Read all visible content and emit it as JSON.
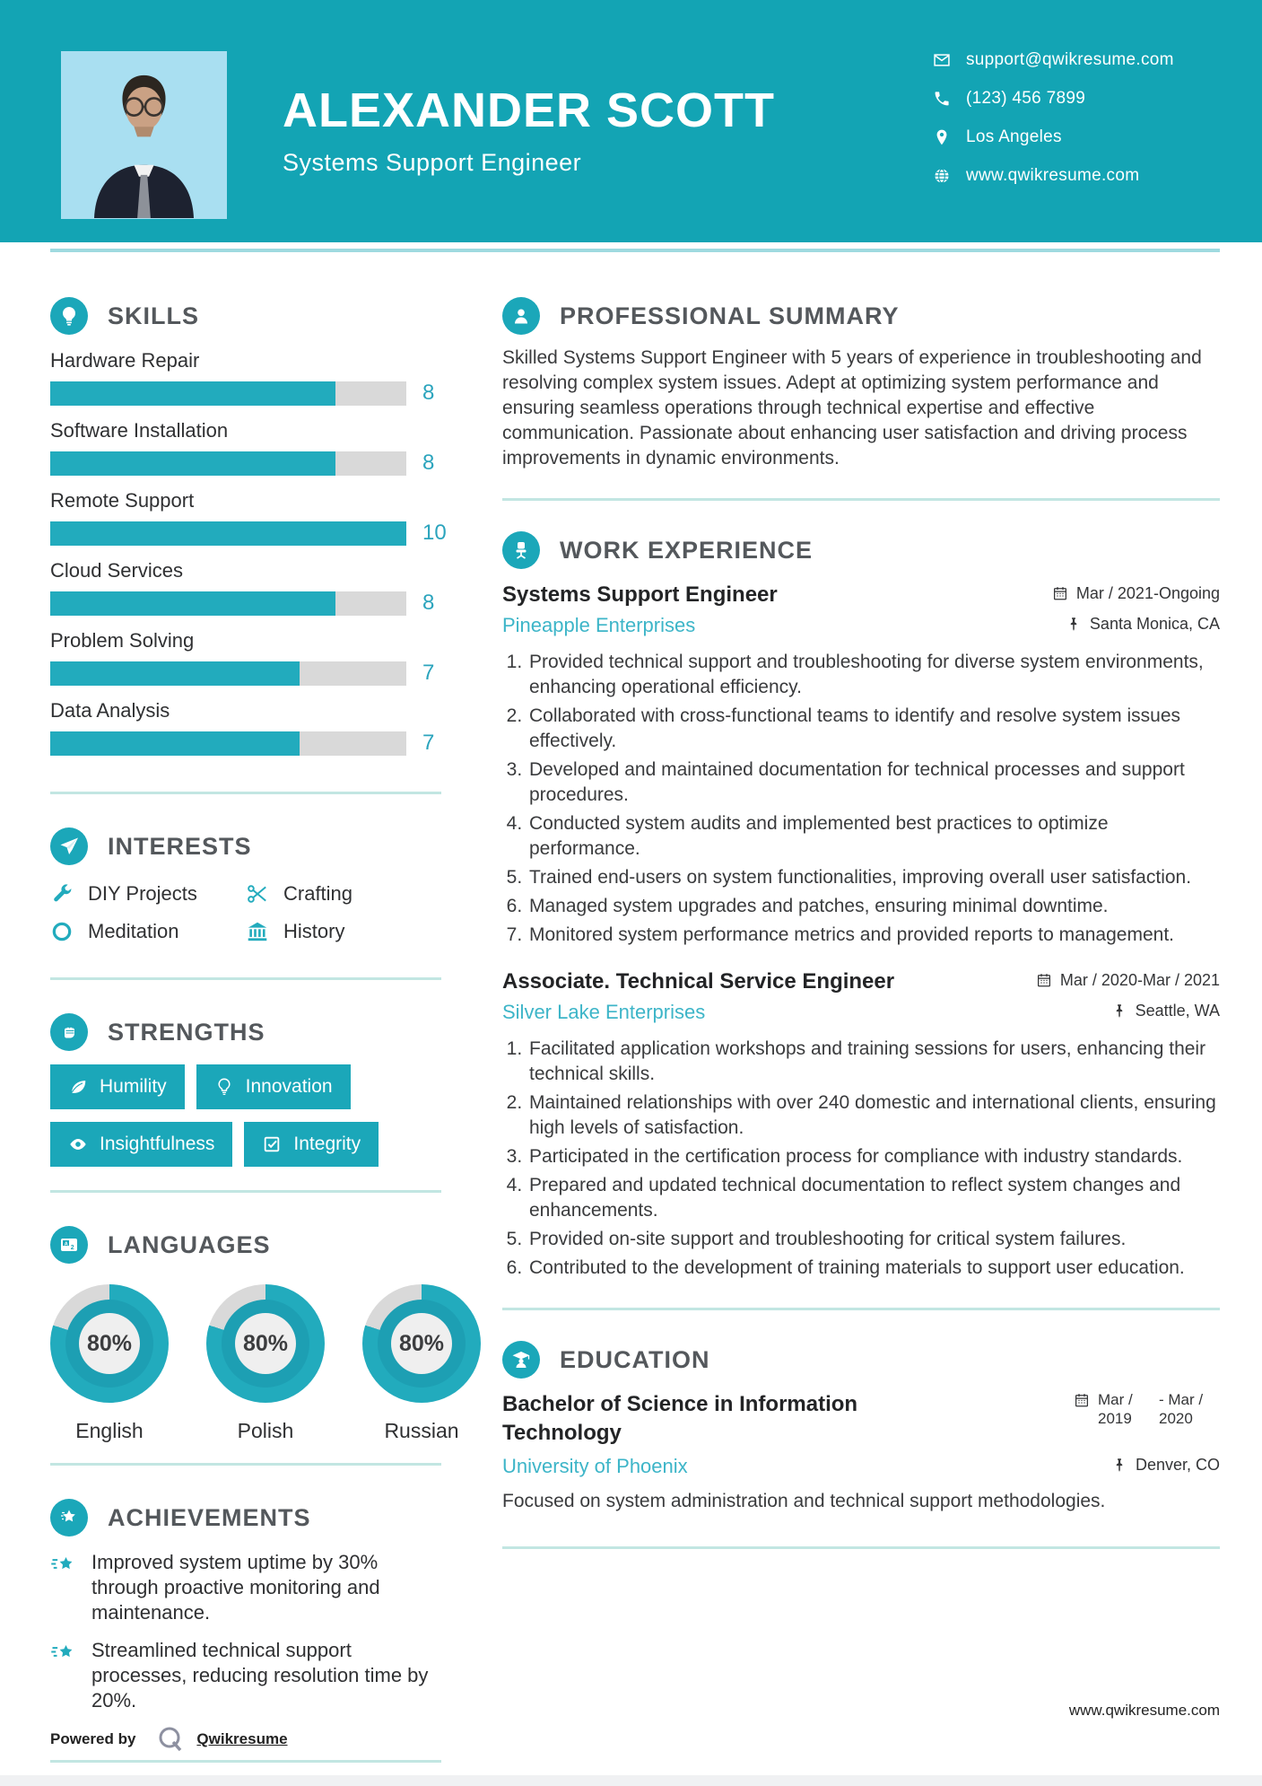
{
  "colors": {
    "teal": "#13a4b4",
    "bar_teal": "#22abbd",
    "link_teal": "#3db5c8",
    "divider": "#c2e6e2",
    "track_gray": "#d9d9d9",
    "heading_gray": "#54585c"
  },
  "header": {
    "name": "ALEXANDER SCOTT",
    "title": "Systems Support Engineer",
    "contacts": {
      "email": "support@qwikresume.com",
      "phone": "(123) 456 7899",
      "location": "Los Angeles",
      "website": "www.qwikresume.com"
    }
  },
  "skills": {
    "heading": "SKILLS",
    "items": [
      {
        "label": "Hardware Repair",
        "value": 8,
        "max": 10
      },
      {
        "label": "Software Installation",
        "value": 8,
        "max": 10
      },
      {
        "label": "Remote Support",
        "value": 10,
        "max": 10
      },
      {
        "label": "Cloud Services",
        "value": 8,
        "max": 10
      },
      {
        "label": "Problem Solving",
        "value": 7,
        "max": 10
      },
      {
        "label": "Data Analysis",
        "value": 7,
        "max": 10
      }
    ]
  },
  "interests": {
    "heading": "INTERESTS",
    "items": [
      {
        "icon": "wrench-icon",
        "label": "DIY Projects"
      },
      {
        "icon": "scissors-icon",
        "label": "Crafting"
      },
      {
        "icon": "circle-icon",
        "label": "Meditation"
      },
      {
        "icon": "museum-icon",
        "label": "History"
      }
    ]
  },
  "strengths": {
    "heading": "STRENGTHS",
    "items": [
      {
        "icon": "leaf-icon",
        "label": "Humility"
      },
      {
        "icon": "bulb-icon",
        "label": "Innovation"
      },
      {
        "icon": "eye-icon",
        "label": "Insightfulness"
      },
      {
        "icon": "checkbox-icon",
        "label": "Integrity"
      }
    ]
  },
  "languages": {
    "heading": "LANGUAGES",
    "items": [
      {
        "label": "English",
        "percent": 80,
        "percent_label": "80%"
      },
      {
        "label": "Polish",
        "percent": 80,
        "percent_label": "80%"
      },
      {
        "label": "Russian",
        "percent": 80,
        "percent_label": "80%"
      }
    ]
  },
  "achievements": {
    "heading": "ACHIEVEMENTS",
    "items": [
      "Improved system uptime by 30% through proactive monitoring and maintenance.",
      "Streamlined technical support processes, reducing resolution time by 20%."
    ]
  },
  "summary": {
    "heading": "PROFESSIONAL SUMMARY",
    "text": "Skilled Systems Support Engineer with 5 years of experience in troubleshooting and resolving complex system issues. Adept at optimizing system performance and ensuring seamless operations through technical expertise and effective communication. Passionate about enhancing user satisfaction and driving process improvements in dynamic environments."
  },
  "experience": {
    "heading": "WORK EXPERIENCE",
    "jobs": [
      {
        "title": "Systems Support Engineer",
        "company": "Pineapple Enterprises",
        "dates": "Mar / 2021-Ongoing",
        "location": "Santa Monica, CA",
        "bullets": [
          "Provided technical support and troubleshooting for diverse system environments, enhancing operational efficiency.",
          "Collaborated with cross-functional teams to identify and resolve system issues effectively.",
          "Developed and maintained documentation for technical processes and support procedures.",
          "Conducted system audits and implemented best practices to optimize performance.",
          "Trained end-users on system functionalities, improving overall user satisfaction.",
          "Managed system upgrades and patches, ensuring minimal downtime.",
          "Monitored system performance metrics and provided reports to management."
        ]
      },
      {
        "title": "Associate. Technical Service Engineer",
        "company": "Silver Lake Enterprises",
        "dates": "Mar / 2020-Mar / 2021",
        "location": "Seattle, WA",
        "bullets": [
          "Facilitated application workshops and training sessions for users, enhancing their technical skills.",
          "Maintained relationships with over 240 domestic and international clients, ensuring high levels of satisfaction.",
          "Participated in the certification process for compliance with industry standards.",
          "Prepared and updated technical documentation to reflect system changes and enhancements.",
          "Provided on-site support and troubleshooting for critical system failures.",
          "Contributed to the development of training materials to support user education."
        ]
      }
    ]
  },
  "education": {
    "heading": "EDUCATION",
    "degree": "Bachelor of Science in Information Technology",
    "school": "University of Phoenix",
    "date_start": "Mar / 2019",
    "date_end": "- Mar / 2020",
    "location": "Denver, CO",
    "note": "Focused on system administration and technical support methodologies."
  },
  "footer": {
    "powered_by": "Powered by",
    "brand": "Qwikresume",
    "site": "www.qwikresume.com"
  }
}
